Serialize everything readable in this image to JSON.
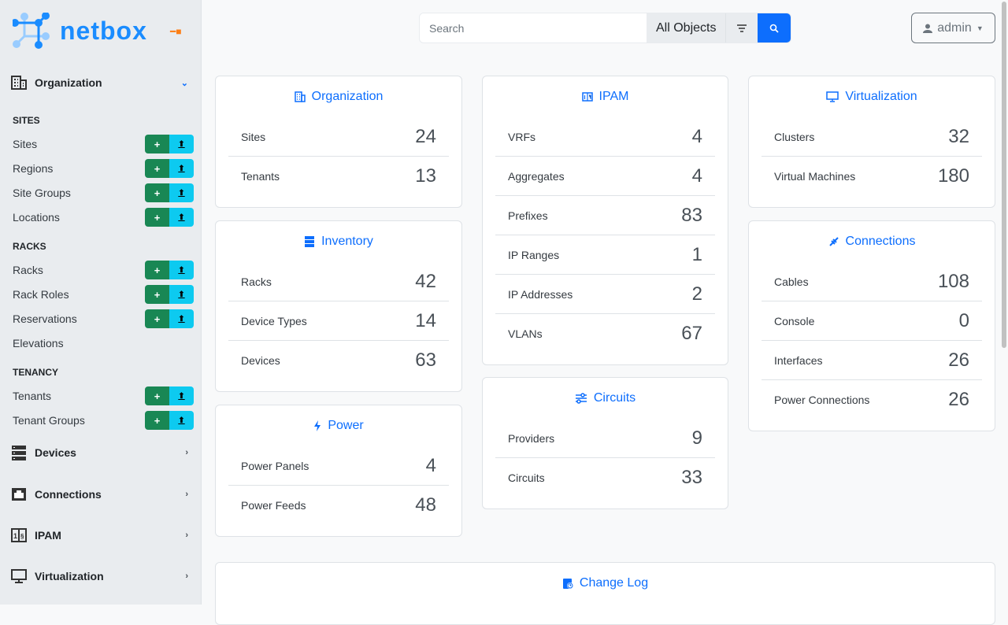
{
  "app": {
    "logo_text": "netbox"
  },
  "sidebar": {
    "organization": {
      "label": "Organization",
      "groups": [
        {
          "label": "SITES",
          "items": [
            {
              "label": "Sites",
              "buttons": true
            },
            {
              "label": "Regions",
              "buttons": true
            },
            {
              "label": "Site Groups",
              "buttons": true
            },
            {
              "label": "Locations",
              "buttons": true
            }
          ]
        },
        {
          "label": "RACKS",
          "items": [
            {
              "label": "Racks",
              "buttons": true
            },
            {
              "label": "Rack Roles",
              "buttons": true
            },
            {
              "label": "Reservations",
              "buttons": true
            },
            {
              "label": "Elevations",
              "buttons": false
            }
          ]
        },
        {
          "label": "TENANCY",
          "items": [
            {
              "label": "Tenants",
              "buttons": true
            },
            {
              "label": "Tenant Groups",
              "buttons": true
            }
          ]
        }
      ]
    },
    "sections": [
      {
        "label": "Devices",
        "icon": "server-icon"
      },
      {
        "label": "Connections",
        "icon": "ethernet-icon"
      },
      {
        "label": "IPAM",
        "icon": "ipam-icon"
      },
      {
        "label": "Virtualization",
        "icon": "monitor-icon"
      }
    ],
    "add_glyph": "+",
    "import_glyph": "⬆"
  },
  "header": {
    "search_placeholder": "Search",
    "search_scope": "All Objects",
    "user": "admin"
  },
  "cards": {
    "organization": {
      "title": "Organization",
      "rows": [
        {
          "label": "Sites",
          "value": "24"
        },
        {
          "label": "Tenants",
          "value": "13"
        }
      ]
    },
    "inventory": {
      "title": "Inventory",
      "rows": [
        {
          "label": "Racks",
          "value": "42"
        },
        {
          "label": "Device Types",
          "value": "14"
        },
        {
          "label": "Devices",
          "value": "63"
        }
      ]
    },
    "power": {
      "title": "Power",
      "rows": [
        {
          "label": "Power Panels",
          "value": "4"
        },
        {
          "label": "Power Feeds",
          "value": "48"
        }
      ]
    },
    "ipam": {
      "title": "IPAM",
      "rows": [
        {
          "label": "VRFs",
          "value": "4"
        },
        {
          "label": "Aggregates",
          "value": "4"
        },
        {
          "label": "Prefixes",
          "value": "83"
        },
        {
          "label": "IP Ranges",
          "value": "1"
        },
        {
          "label": "IP Addresses",
          "value": "2"
        },
        {
          "label": "VLANs",
          "value": "67"
        }
      ]
    },
    "circuits": {
      "title": "Circuits",
      "rows": [
        {
          "label": "Providers",
          "value": "9"
        },
        {
          "label": "Circuits",
          "value": "33"
        }
      ]
    },
    "virtualization": {
      "title": "Virtualization",
      "rows": [
        {
          "label": "Clusters",
          "value": "32"
        },
        {
          "label": "Virtual Machines",
          "value": "180"
        }
      ]
    },
    "connections": {
      "title": "Connections",
      "rows": [
        {
          "label": "Cables",
          "value": "108"
        },
        {
          "label": "Console",
          "value": "0"
        },
        {
          "label": "Interfaces",
          "value": "26"
        },
        {
          "label": "Power Connections",
          "value": "26"
        }
      ]
    },
    "changelog": {
      "title": "Change Log",
      "rows": []
    }
  },
  "colors": {
    "accent": "#0d6efd",
    "add": "#198754",
    "import": "#0dcaf0",
    "pin": "#fd7e14"
  }
}
